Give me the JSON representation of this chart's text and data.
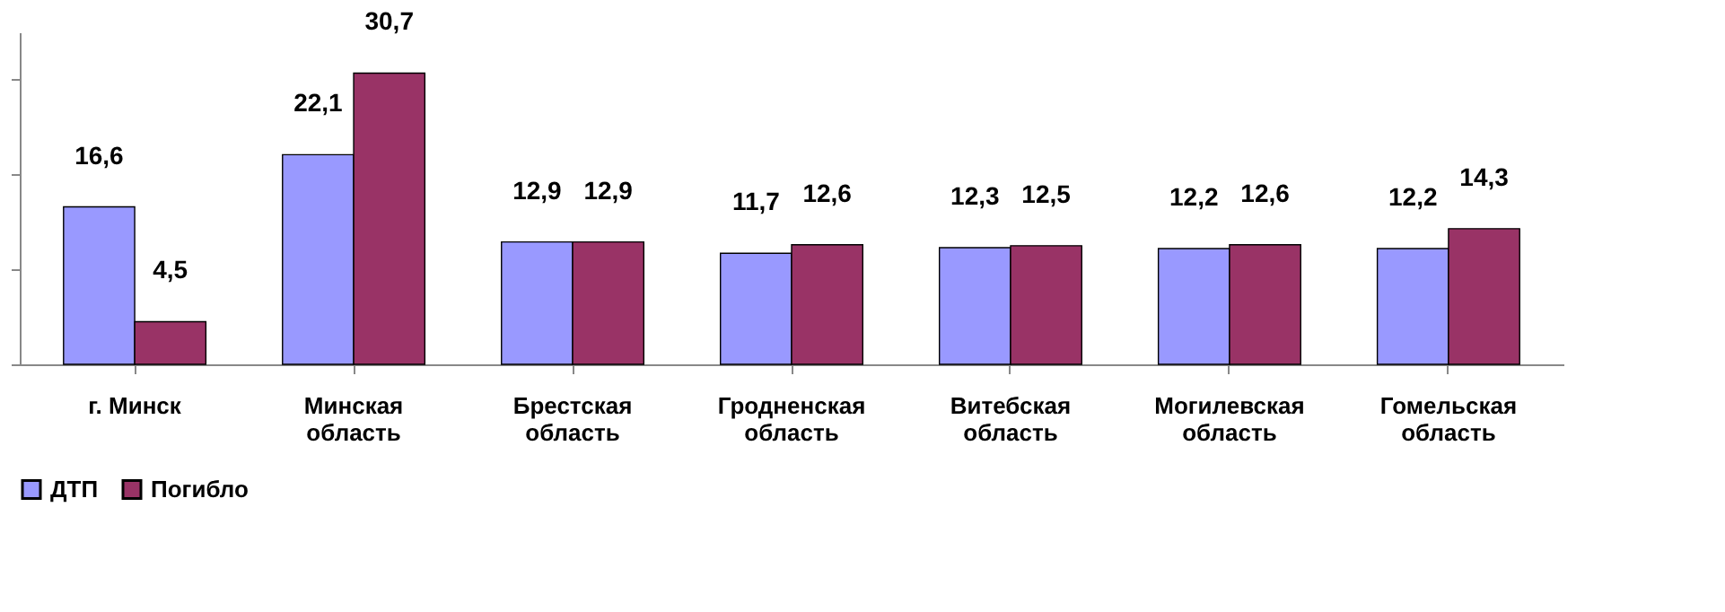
{
  "chart_data": {
    "type": "bar",
    "categories": [
      "г. Минск",
      "Минская\nобласть",
      "Брестская\nобласть",
      "Гродненская\nобласть",
      "Витебская\nобласть",
      "Могилевская\nобласть",
      "Гомельская\nобласть"
    ],
    "series": [
      {
        "name": "ДТП",
        "color": "#9999ff",
        "values": [
          16.6,
          22.1,
          12.9,
          11.7,
          12.3,
          12.2,
          12.2
        ],
        "value_labels": [
          "16,6",
          "22,1",
          "12,9",
          "11,7",
          "12,3",
          "12,2",
          "12,2"
        ]
      },
      {
        "name": "Погибло",
        "color": "#993366",
        "values": [
          4.5,
          30.7,
          12.9,
          12.6,
          12.5,
          12.6,
          14.3
        ],
        "value_labels": [
          "4,5",
          "30,7",
          "12,9",
          "12,6",
          "12,5",
          "12,6",
          "14,3"
        ]
      }
    ],
    "tick_labels": "x",
    "grid": false,
    "legend": "bottom"
  }
}
